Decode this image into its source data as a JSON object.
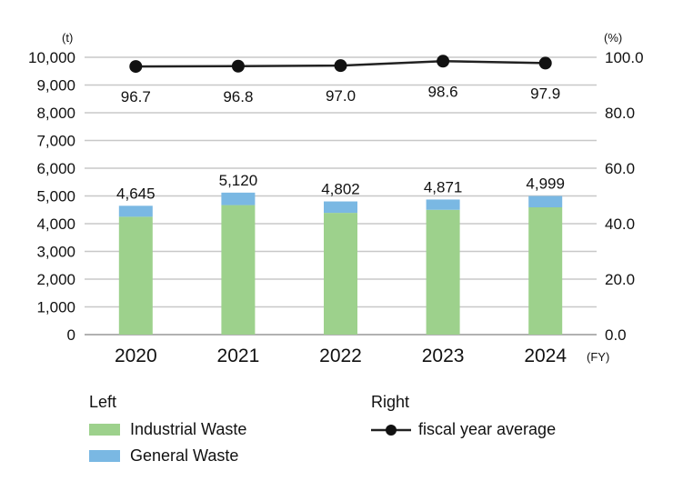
{
  "chart_data": {
    "type": "bar+line",
    "categories": [
      "2020",
      "2021",
      "2022",
      "2023",
      "2024"
    ],
    "x_unit": "(FY)",
    "left_axis": {
      "unit": "(t)",
      "range": [
        0,
        10000
      ],
      "ticks": [
        "0",
        "1,000",
        "2,000",
        "3,000",
        "4,000",
        "5,000",
        "6,000",
        "7,000",
        "8,000",
        "9,000",
        "10,000"
      ]
    },
    "right_axis": {
      "unit": "(%)",
      "range": [
        0,
        100
      ],
      "ticks": [
        "0.0",
        "20.0",
        "40.0",
        "60.0",
        "80.0",
        "100.0"
      ]
    },
    "bar_series": [
      {
        "name": "Industrial Waste",
        "color": "#9dd18c",
        "values": [
          4250,
          4670,
          4390,
          4500,
          4590
        ]
      },
      {
        "name": "General Waste",
        "color": "#7ab8e3",
        "values": [
          395,
          450,
          412,
          371,
          409
        ]
      }
    ],
    "bar_totals": [
      "4,645",
      "5,120",
      "4,802",
      "4,871",
      "4,999"
    ],
    "line_series": {
      "name": "fiscal year average",
      "color": "#222222",
      "values": [
        96.7,
        96.8,
        97.0,
        98.6,
        97.9
      ],
      "labels": [
        "96.7",
        "96.8",
        "97.0",
        "98.6",
        "97.9"
      ]
    },
    "grid": "horizontal",
    "legend": {
      "left_title": "Left",
      "right_title": "Right",
      "placement": "bottom"
    }
  }
}
